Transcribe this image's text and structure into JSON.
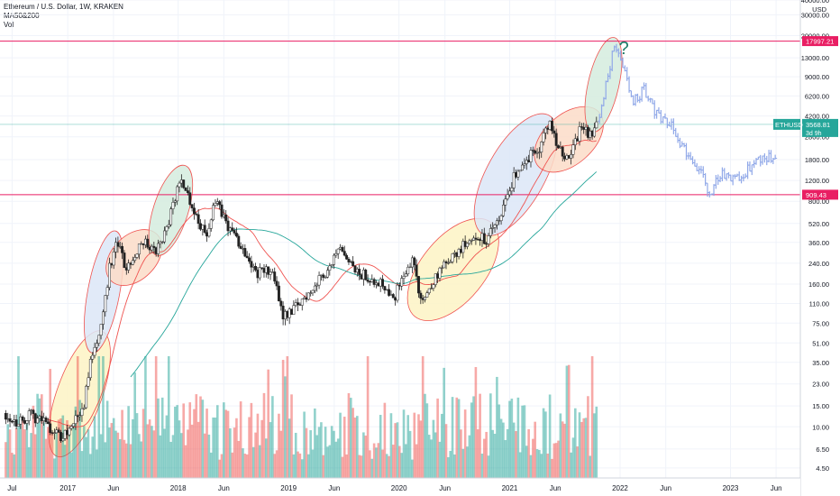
{
  "header": {
    "title": "Ethereum / U.S. Dollar, 1W, KRAKEN",
    "indicator_ma": "MA50&200",
    "indicator_vol": "Vol"
  },
  "colors": {
    "up": "#26a69a",
    "down": "#ef5350",
    "ma50": "#ef5350",
    "ma200": "#26a69a",
    "hline": "#e91e63",
    "ethusd_badge": "#26a69a",
    "projection": "#90a8e8",
    "question": "#1b7a68"
  },
  "chart_data": {
    "type": "candlestick",
    "title": "Ethereum / U.S. Dollar, 1W, KRAKEN",
    "y_scale": "log",
    "ylim": [
      3.7,
      40000
    ],
    "y_axis_unit": "USD",
    "y_ticks": [
      40000,
      30000,
      20000,
      13000,
      9000,
      6200,
      4200,
      2800,
      1800,
      1200,
      800,
      520,
      360,
      240,
      160,
      110,
      75,
      51,
      35,
      23,
      15,
      10,
      6.5,
      4.5
    ],
    "y_tick_labels": [
      "40000.00",
      "30000.00",
      "20000.00",
      "13000.00",
      "9000.00",
      "6200.00",
      "4200.00",
      "2800.00",
      "1800.00",
      "1200.00",
      "800.00",
      "520.00",
      "360.00",
      "240.00",
      "160.00",
      "110.00",
      "75.00",
      "51.00",
      "35.00",
      "23.00",
      "15.00",
      "10.00",
      "6.50",
      "4.50"
    ],
    "x_ticks": [
      {
        "date": "2016-07-01",
        "label": "Jul"
      },
      {
        "date": "2017-01-01",
        "label": "2017"
      },
      {
        "date": "2017-06-01",
        "label": "Jun"
      },
      {
        "date": "2018-01-01",
        "label": "2018"
      },
      {
        "date": "2018-06-01",
        "label": "Jun"
      },
      {
        "date": "2019-01-01",
        "label": "2019"
      },
      {
        "date": "2019-06-01",
        "label": "Jun"
      },
      {
        "date": "2020-01-01",
        "label": "2020"
      },
      {
        "date": "2020-06-01",
        "label": "Jun"
      },
      {
        "date": "2021-01-01",
        "label": "2021"
      },
      {
        "date": "2021-06-01",
        "label": "Jun"
      },
      {
        "date": "2022-01-01",
        "label": "2022"
      },
      {
        "date": "2022-06-01",
        "label": "Jun"
      },
      {
        "date": "2023-01-01",
        "label": "2023"
      },
      {
        "date": "2023-06-01",
        "label": "Jun"
      }
    ],
    "xlim": [
      "2016-05-22",
      "2023-08-20"
    ],
    "horizontal_lines": [
      {
        "value": 17997.21,
        "label": "17997.21"
      },
      {
        "value": 909.43,
        "label": "909.43"
      }
    ],
    "last_price": {
      "symbol": "ETHUSD",
      "value": 3568.81,
      "countdown": "3d 9h"
    },
    "annotation": "?",
    "anchors": [
      {
        "date": "2016-06-10",
        "price": 13
      },
      {
        "date": "2016-07-15",
        "price": 11
      },
      {
        "date": "2016-09-01",
        "price": 12.5
      },
      {
        "date": "2016-10-20",
        "price": 11
      },
      {
        "date": "2016-12-10",
        "price": 8
      },
      {
        "date": "2017-01-10",
        "price": 10
      },
      {
        "date": "2017-02-20",
        "price": 14
      },
      {
        "date": "2017-03-25",
        "price": 45
      },
      {
        "date": "2017-04-20",
        "price": 70
      },
      {
        "date": "2017-05-20",
        "price": 230
      },
      {
        "date": "2017-06-12",
        "price": 360
      },
      {
        "date": "2017-07-15",
        "price": 210
      },
      {
        "date": "2017-09-01",
        "price": 380
      },
      {
        "date": "2017-10-20",
        "price": 300
      },
      {
        "date": "2017-11-25",
        "price": 480
      },
      {
        "date": "2018-01-10",
        "price": 1300
      },
      {
        "date": "2018-02-10",
        "price": 820
      },
      {
        "date": "2018-04-01",
        "price": 400
      },
      {
        "date": "2018-05-05",
        "price": 780
      },
      {
        "date": "2018-06-25",
        "price": 450
      },
      {
        "date": "2018-08-15",
        "price": 290
      },
      {
        "date": "2018-09-15",
        "price": 200
      },
      {
        "date": "2018-11-05",
        "price": 210
      },
      {
        "date": "2018-12-15",
        "price": 88
      },
      {
        "date": "2019-02-01",
        "price": 105
      },
      {
        "date": "2019-04-01",
        "price": 160
      },
      {
        "date": "2019-06-20",
        "price": 300
      },
      {
        "date": "2019-08-10",
        "price": 200
      },
      {
        "date": "2019-10-20",
        "price": 175
      },
      {
        "date": "2019-12-20",
        "price": 130
      },
      {
        "date": "2020-02-15",
        "price": 270
      },
      {
        "date": "2020-03-15",
        "price": 110
      },
      {
        "date": "2020-05-10",
        "price": 200
      },
      {
        "date": "2020-07-25",
        "price": 320
      },
      {
        "date": "2020-09-01",
        "price": 430
      },
      {
        "date": "2020-10-15",
        "price": 370
      },
      {
        "date": "2020-12-01",
        "price": 600
      },
      {
        "date": "2021-01-15",
        "price": 1300
      },
      {
        "date": "2021-02-20",
        "price": 1800
      },
      {
        "date": "2021-04-10",
        "price": 2200
      },
      {
        "date": "2021-05-12",
        "price": 3900
      },
      {
        "date": "2021-06-20",
        "price": 2000
      },
      {
        "date": "2021-07-20",
        "price": 1900
      },
      {
        "date": "2021-08-20",
        "price": 3200
      },
      {
        "date": "2021-09-25",
        "price": 3000
      },
      {
        "date": "2021-10-20",
        "price": 3568.81
      }
    ],
    "projection": [
      {
        "date": "2021-10-25",
        "price": 3800
      },
      {
        "date": "2021-11-20",
        "price": 9000
      },
      {
        "date": "2021-12-15",
        "price": 17000
      },
      {
        "date": "2022-01-10",
        "price": 11000
      },
      {
        "date": "2022-02-15",
        "price": 5500
      },
      {
        "date": "2022-03-20",
        "price": 7000
      },
      {
        "date": "2022-05-01",
        "price": 4400
      },
      {
        "date": "2022-06-20",
        "price": 3400
      },
      {
        "date": "2022-08-01",
        "price": 2200
      },
      {
        "date": "2022-09-20",
        "price": 1500
      },
      {
        "date": "2022-10-25",
        "price": 900
      },
      {
        "date": "2022-12-01",
        "price": 1400
      },
      {
        "date": "2023-01-20",
        "price": 1200
      },
      {
        "date": "2023-03-20",
        "price": 1700
      },
      {
        "date": "2023-05-01",
        "price": 1900
      },
      {
        "date": "2023-05-30",
        "price": 1800
      }
    ],
    "ellipses": [
      {
        "from": "2016-12-01",
        "to": "2017-04-20",
        "lo": 6,
        "hi": 60,
        "fill": "#fdf3c4",
        "role": "accumulation"
      },
      {
        "from": "2017-03-25",
        "to": "2017-06-05",
        "lo": 45,
        "hi": 420,
        "fill": "#dce6f7",
        "role": "impulse"
      },
      {
        "from": "2017-06-01",
        "to": "2017-10-15",
        "lo": 180,
        "hi": 400,
        "fill": "#fbdcc8",
        "role": "consolidation"
      },
      {
        "from": "2017-10-25",
        "to": "2018-01-20",
        "lo": 300,
        "hi": 1500,
        "fill": "#d5ecde",
        "role": "impulse"
      },
      {
        "from": "2020-03-01",
        "to": "2020-10-25",
        "lo": 90,
        "hi": 500,
        "fill": "#fdf3c4",
        "role": "accumulation"
      },
      {
        "from": "2020-10-10",
        "to": "2021-05-05",
        "lo": 450,
        "hi": 4000,
        "fill": "#dce6f7",
        "role": "impulse"
      },
      {
        "from": "2021-04-15",
        "to": "2021-10-15",
        "lo": 1650,
        "hi": 4300,
        "fill": "#fbdcc8",
        "role": "consolidation"
      },
      {
        "from": "2021-10-05",
        "to": "2021-12-10",
        "lo": 3300,
        "hi": 18000,
        "fill": "#d5ecde",
        "role": "projected impulse"
      }
    ]
  }
}
